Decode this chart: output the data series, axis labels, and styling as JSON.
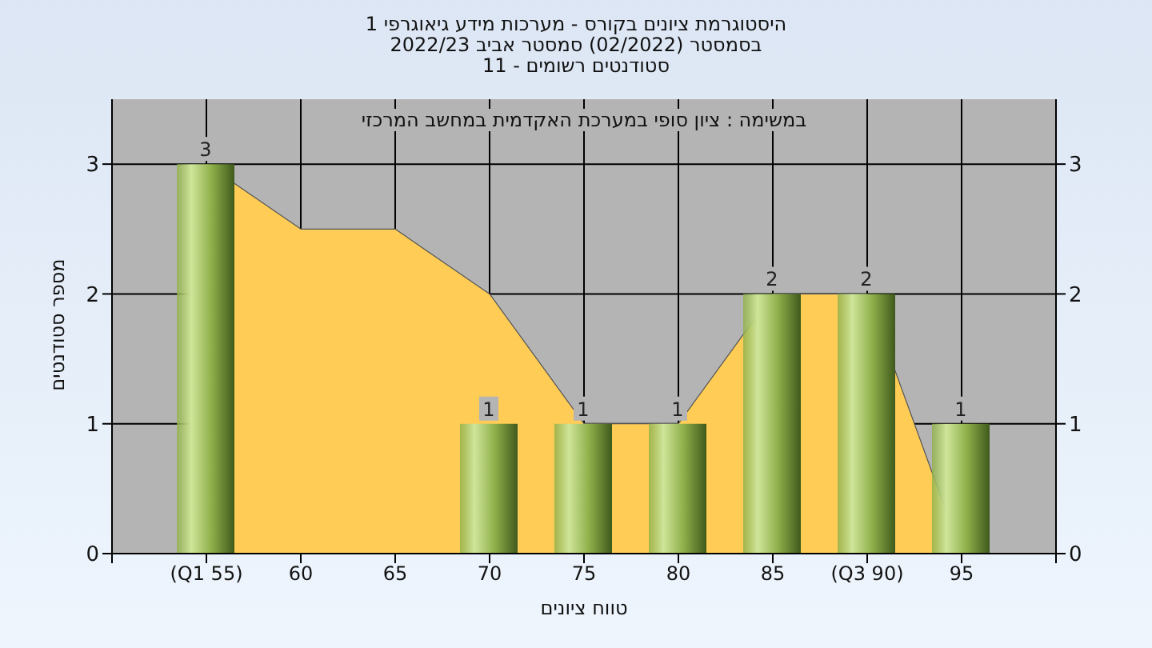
{
  "chart_data": {
    "type": "bar",
    "title": "היסטוגרמת ציונים בקורס - מערכות מידע גיאוגרפי 1",
    "subtitle": "בסמסטר  (02/2022)  סמסטר אביב 2022/23\nסטודנטים רשומים - 11",
    "annotations": [
      "במשימה : ציון סופי במערכת האקדמית במחשב המרכזי"
    ],
    "xlabel": "טווח ציונים",
    "ylabel": "מספר סטודנטים",
    "categories": [
      "(Q1 55)",
      "60",
      "65",
      "70",
      "75",
      "80",
      "85",
      "(Q3 90)",
      "95"
    ],
    "series": [
      {
        "type": "area",
        "color": "#ffcc55",
        "values": [
          3,
          2.5,
          2.5,
          2,
          1,
          1,
          2,
          2,
          0
        ]
      },
      {
        "color": "#8fb04a",
        "values": [
          3,
          0,
          0,
          1,
          1,
          1,
          2,
          2,
          1
        ],
        "value_labels": [
          "3",
          null,
          null,
          "1",
          "1",
          "1",
          "2",
          "2",
          "1"
        ]
      }
    ],
    "ylim": [
      0,
      3.5
    ],
    "yticks": [
      0,
      1,
      2,
      3
    ],
    "y2lim": [
      0,
      3.5
    ],
    "y2ticks": [
      0,
      1,
      2,
      3
    ],
    "grid": true,
    "legend": false
  }
}
